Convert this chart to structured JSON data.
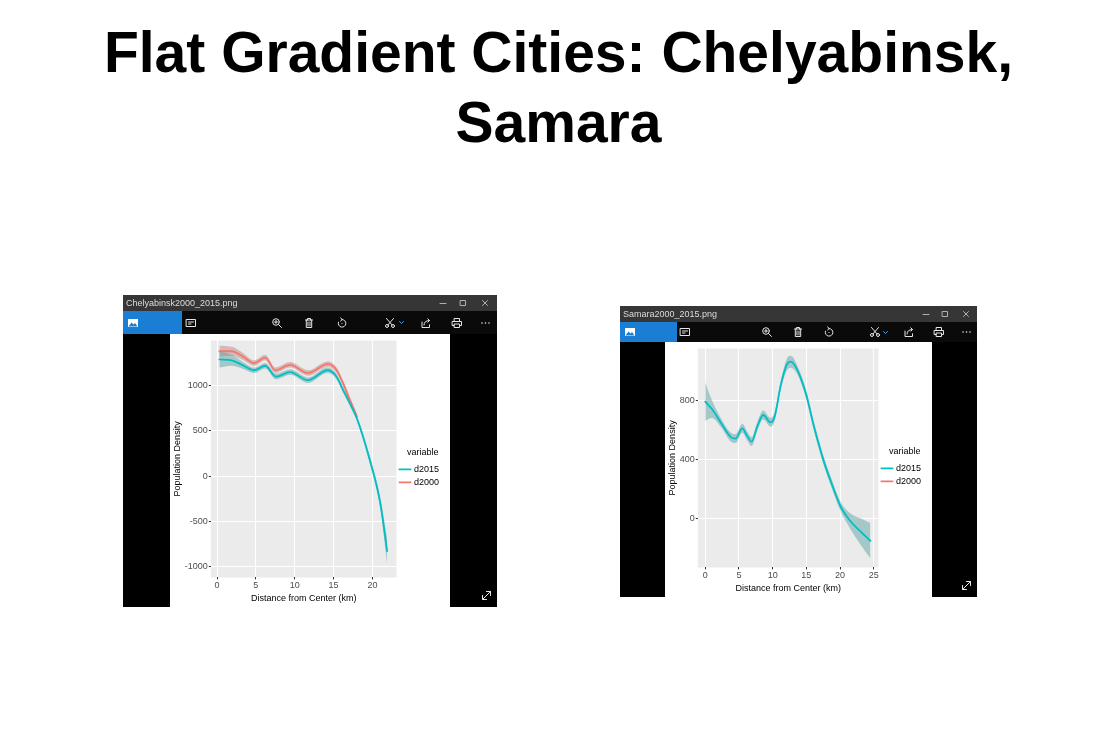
{
  "chart_data": [
    {
      "type": "line",
      "title": "Flat Gradient Cities: Chelyabinsk, Samara",
      "xlabel": "Distance from Center (km)",
      "ylabel": "Population Density",
      "legend": "right",
      "legend_title": "variable",
      "annotations": [
        "Chelyabinsk2000_2015.png"
      ],
      "xlim": [
        -0.8,
        23.1
      ],
      "ylim": [
        -1120,
        1500
      ],
      "xticks": [
        0,
        5,
        10,
        15,
        20
      ],
      "yticks": [
        -1000,
        -500,
        0,
        500,
        1000
      ],
      "grid": true,
      "marker": "none",
      "series": [
        {
          "name": "d2000",
          "color": "#f8766d",
          "x": [
            0.3,
            1.9,
            3.2,
            4.8,
            6.2,
            7.5,
            9.4,
            11.7,
            14.3,
            15.4,
            16.3,
            17.3,
            18.0
          ],
          "values": [
            1380,
            1380,
            1330,
            1250,
            1310,
            1170,
            1230,
            1140,
            1240,
            1170,
            1010,
            800,
            660
          ],
          "lower": [
            1320,
            1330,
            1290,
            1220,
            1280,
            1140,
            1200,
            1110,
            1210,
            1140,
            980,
            770,
            630
          ],
          "upper": [
            1440,
            1430,
            1370,
            1280,
            1340,
            1200,
            1260,
            1170,
            1270,
            1200,
            1040,
            830,
            690
          ]
        },
        {
          "name": "d2015",
          "color": "#00bfc4",
          "x": [
            0.3,
            1.9,
            3.2,
            4.8,
            6.2,
            7.6,
            9.4,
            11.7,
            14.2,
            15.3,
            16.3,
            17.3,
            18.0,
            19.5,
            21.0,
            21.9
          ],
          "values": [
            1290,
            1280,
            1230,
            1170,
            1220,
            1100,
            1150,
            1060,
            1170,
            1110,
            940,
            770,
            640,
            230,
            -290,
            -830
          ],
          "lower": [
            1200,
            1220,
            1190,
            1140,
            1190,
            1070,
            1120,
            1030,
            1140,
            1080,
            910,
            740,
            610,
            190,
            -350,
            -970
          ],
          "upper": [
            1380,
            1340,
            1270,
            1200,
            1250,
            1130,
            1180,
            1090,
            1200,
            1140,
            970,
            800,
            670,
            270,
            -230,
            -690
          ]
        }
      ]
    },
    {
      "type": "line",
      "xlabel": "Distance from Center (km)",
      "ylabel": "Population Density",
      "legend": "right",
      "legend_title": "variable",
      "annotations": [
        "Samara2000_2015.png"
      ],
      "xlim": [
        -1.1,
        25.7
      ],
      "ylim": [
        -330,
        1150
      ],
      "xticks": [
        0,
        5,
        10,
        15,
        20,
        25
      ],
      "yticks": [
        0,
        400,
        800
      ],
      "grid": true,
      "marker": "none",
      "series": [
        {
          "name": "d2000",
          "color": "#f8766d"
        },
        {
          "name": "d2015",
          "color": "#00bfc4",
          "x": [
            0,
            1,
            2.3,
            3.8,
            4.5,
            5.5,
            6.2,
            6.9,
            7.7,
            8.6,
            9.7,
            10.3,
            11.2,
            12.1,
            12.7,
            13.6,
            14.9,
            16.2,
            17.5,
            18.8,
            20.1,
            21.4,
            23.1,
            24.5
          ],
          "values": [
            790,
            740,
            650,
            550,
            540,
            610,
            560,
            520,
            620,
            700,
            650,
            690,
            900,
            1040,
            1060,
            1010,
            850,
            610,
            400,
            230,
            80,
            -10,
            -90,
            -150
          ],
          "lower": [
            660,
            680,
            620,
            520,
            510,
            580,
            530,
            490,
            590,
            670,
            620,
            660,
            870,
            1000,
            1020,
            980,
            820,
            580,
            370,
            200,
            50,
            -60,
            -180,
            -270
          ],
          "upper": [
            920,
            800,
            680,
            580,
            570,
            640,
            590,
            550,
            650,
            730,
            680,
            720,
            930,
            1080,
            1100,
            1040,
            880,
            640,
            430,
            260,
            110,
            40,
            0,
            -30
          ]
        }
      ]
    }
  ]
}
